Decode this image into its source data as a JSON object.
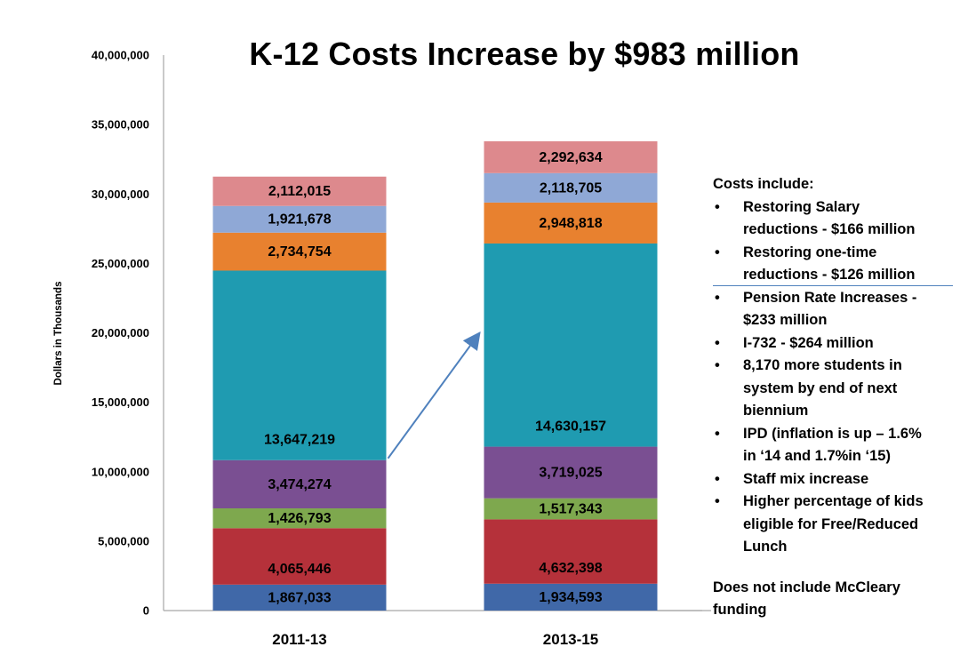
{
  "chart_data": {
    "type": "bar",
    "stacked": true,
    "title": "K-12 Costs Increase by $983 million",
    "ylabel": "Dollars in Thousands",
    "ylim": [
      0,
      40000000
    ],
    "yticks": [
      0,
      5000000,
      10000000,
      15000000,
      20000000,
      25000000,
      30000000,
      35000000,
      40000000
    ],
    "ytick_labels": [
      "0",
      "5,000,000",
      "10,000,000",
      "15,000,000",
      "20,000,000",
      "25,000,000",
      "30,000,000",
      "35,000,000",
      "40,000,000"
    ],
    "categories": [
      "2011-13",
      "2013-15"
    ],
    "grid": false,
    "legend": "none",
    "series": [
      {
        "color": "#4068a8",
        "values": [
          1867033,
          1934593
        ],
        "labels": [
          "1,867,033",
          "1,934,593"
        ]
      },
      {
        "color": "#b5313a",
        "values": [
          4065446,
          4632398
        ],
        "labels": [
          "4,065,446",
          "4,632,398"
        ]
      },
      {
        "color": "#7ea84e",
        "values": [
          1426793,
          1517343
        ],
        "labels": [
          "1,426,793",
          "1,517,343"
        ]
      },
      {
        "color": "#7a4f92",
        "values": [
          3474274,
          3719025
        ],
        "labels": [
          "3,474,274",
          "3,719,025"
        ]
      },
      {
        "color": "#1f9bb1",
        "values": [
          13647219,
          14630157
        ],
        "labels": [
          "13,647,219",
          "14,630,157"
        ]
      },
      {
        "color": "#e8812f",
        "values": [
          2734754,
          2948818
        ],
        "labels": [
          "2,734,754",
          "2,948,818"
        ]
      },
      {
        "color": "#8fa8d6",
        "values": [
          1921678,
          2118705
        ],
        "labels": [
          "1,921,678",
          "2,118,705"
        ]
      },
      {
        "color": "#dd898d",
        "values": [
          2112015,
          2292634
        ],
        "labels": [
          "2,112,015",
          "2,292,634"
        ]
      }
    ],
    "arrow": {
      "color": "#4f81bd",
      "from_category": "2011-13",
      "to_category": "2013-15"
    }
  },
  "notes": {
    "heading": "Costs include:",
    "bullet": "•",
    "items": [
      [
        "Restoring Salary",
        "reductions - $166 million"
      ],
      [
        "Restoring one-time",
        "reductions - $126 million"
      ],
      [
        "Pension Rate Increases -",
        "$233 million"
      ],
      [
        "I-732 - $264 million"
      ],
      [
        "8,170 more students in",
        "system by end of next",
        "biennium"
      ],
      [
        "IPD (inflation is up – 1.6%",
        "in ‘14 and 1.7%in ‘15)"
      ],
      [
        "Staff mix increase"
      ],
      [
        "Higher percentage of kids",
        "eligible for Free/Reduced",
        "Lunch"
      ]
    ],
    "footer": [
      "Does not include McCleary",
      "funding"
    ]
  }
}
